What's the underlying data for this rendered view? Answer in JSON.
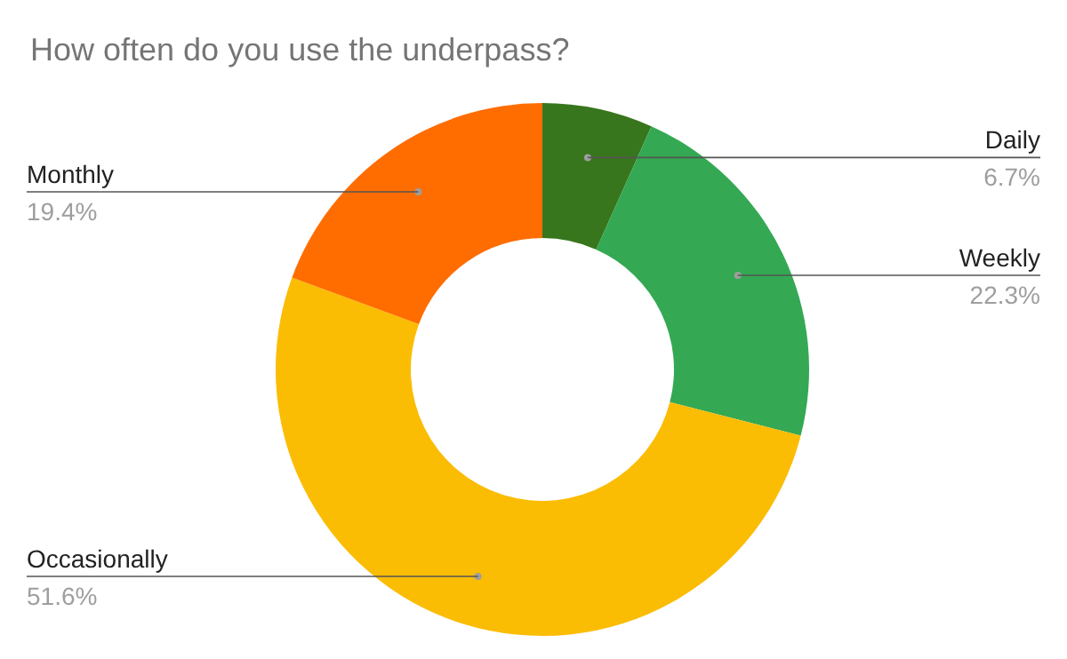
{
  "chart_data": {
    "type": "donut",
    "title": "How often do you use the underpass?",
    "categories": [
      "Daily",
      "Weekly",
      "Occasionally",
      "Monthly"
    ],
    "values": [
      6.7,
      22.3,
      51.6,
      19.4
    ],
    "value_labels": [
      "6.7%",
      "22.3%",
      "51.6%",
      "19.4%"
    ],
    "colors": [
      "#38761d",
      "#34a853",
      "#fbbc04",
      "#ff6d01"
    ]
  }
}
